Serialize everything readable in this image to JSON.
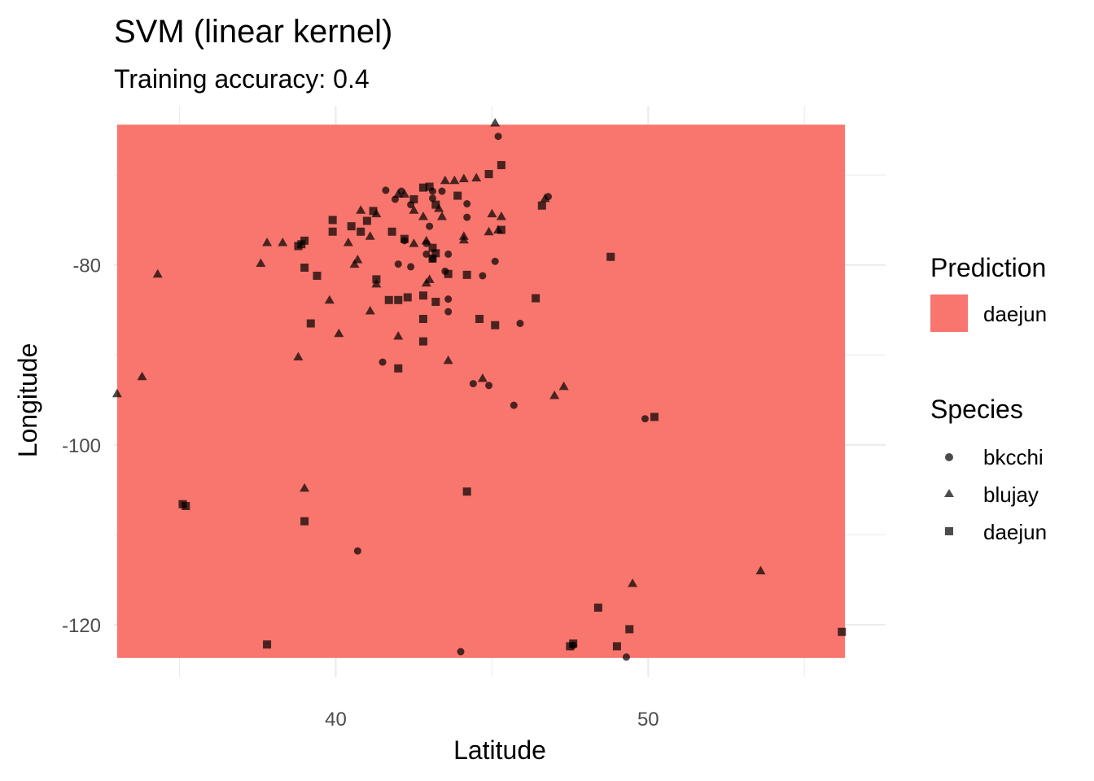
{
  "chart_data": {
    "type": "scatter",
    "title": "SVM (linear kernel)",
    "subtitle": "Training accuracy: 0.4",
    "xlabel": "Latitude",
    "ylabel": "Longitude",
    "xlim": [
      32.9,
      57.6
    ],
    "ylim": [
      -125.8,
      -62.3
    ],
    "x_ticks": [
      40,
      50
    ],
    "y_ticks": [
      -80,
      -100,
      -120
    ],
    "x_minor": [
      35,
      45,
      55
    ],
    "y_minor": [
      -70,
      -90,
      -110
    ],
    "grid": true,
    "prediction_region": {
      "label": "daejun",
      "color": "#F8766D",
      "x_range": [
        33.0,
        56.3
      ],
      "y_range": [
        -123.7,
        -64.4
      ]
    },
    "legends": {
      "prediction": {
        "title": "Prediction",
        "items": [
          {
            "label": "daejun",
            "color": "#F8766D"
          }
        ]
      },
      "species": {
        "title": "Species",
        "items": [
          {
            "label": "bkcchi",
            "shape": "circle"
          },
          {
            "label": "blujay",
            "shape": "triangle"
          },
          {
            "label": "daejun",
            "shape": "square"
          }
        ]
      }
    },
    "series": [
      {
        "name": "bkcchi",
        "shape": "circle",
        "points": [
          [
            45.2,
            -65.7
          ],
          [
            41.6,
            -71.7
          ],
          [
            43.4,
            -71.8
          ],
          [
            46.8,
            -72.4
          ],
          [
            43.1,
            -71.8
          ],
          [
            43.1,
            -72.6
          ],
          [
            41.9,
            -72.7
          ],
          [
            42.1,
            -71.8
          ],
          [
            44.2,
            -73.2
          ],
          [
            42.4,
            -73.3
          ],
          [
            44.2,
            -74.7
          ],
          [
            43.0,
            -75.7
          ],
          [
            42.2,
            -77.3
          ],
          [
            42.9,
            -77.6
          ],
          [
            42.9,
            -78.8
          ],
          [
            43.1,
            -79.3
          ],
          [
            43.6,
            -78.8
          ],
          [
            45.1,
            -79.6
          ],
          [
            42.0,
            -79.9
          ],
          [
            43.5,
            -80.7
          ],
          [
            44.7,
            -81.2
          ],
          [
            42.4,
            -80.2
          ],
          [
            43.6,
            -83.8
          ],
          [
            43.6,
            -85.2
          ],
          [
            45.9,
            -86.5
          ],
          [
            41.5,
            -90.8
          ],
          [
            44.4,
            -93.2
          ],
          [
            44.9,
            -93.4
          ],
          [
            45.7,
            -95.6
          ],
          [
            49.9,
            -97.1
          ],
          [
            40.7,
            -111.8
          ],
          [
            44.0,
            -123.0
          ],
          [
            47.6,
            -122.3
          ],
          [
            49.3,
            -123.6
          ]
        ]
      },
      {
        "name": "blujay",
        "shape": "triangle",
        "points": [
          [
            45.1,
            -64.2
          ],
          [
            44.1,
            -70.4
          ],
          [
            44.5,
            -70.3
          ],
          [
            43.8,
            -70.6
          ],
          [
            43.5,
            -70.6
          ],
          [
            46.7,
            -72.6
          ],
          [
            42.0,
            -72.1
          ],
          [
            42.2,
            -72.1
          ],
          [
            40.8,
            -73.9
          ],
          [
            41.3,
            -74.3
          ],
          [
            42.5,
            -73.9
          ],
          [
            43.3,
            -73.7
          ],
          [
            42.8,
            -74.6
          ],
          [
            43.4,
            -74.6
          ],
          [
            45.0,
            -74.3
          ],
          [
            45.3,
            -74.6
          ],
          [
            44.9,
            -76.3
          ],
          [
            45.2,
            -76.1
          ],
          [
            44.1,
            -77.2
          ],
          [
            41.1,
            -76.8
          ],
          [
            42.9,
            -77.3
          ],
          [
            44.1,
            -76.8
          ],
          [
            42.5,
            -77.6
          ],
          [
            37.8,
            -77.5
          ],
          [
            38.3,
            -77.5
          ],
          [
            40.4,
            -77.5
          ],
          [
            37.6,
            -79.8
          ],
          [
            40.7,
            -79.4
          ],
          [
            40.6,
            -79.9
          ],
          [
            43.0,
            -81.6
          ],
          [
            42.9,
            -82.0
          ],
          [
            34.3,
            -81.0
          ],
          [
            41.3,
            -82.1
          ],
          [
            39.8,
            -83.9
          ],
          [
            41.1,
            -85.1
          ],
          [
            40.1,
            -87.6
          ],
          [
            42.0,
            -87.9
          ],
          [
            38.8,
            -90.2
          ],
          [
            43.6,
            -90.6
          ],
          [
            44.7,
            -92.6
          ],
          [
            47.3,
            -93.5
          ],
          [
            47.0,
            -94.5
          ],
          [
            33.8,
            -92.4
          ],
          [
            33.0,
            -94.3
          ],
          [
            39.0,
            -104.8
          ],
          [
            49.5,
            -115.4
          ],
          [
            53.6,
            -114.0
          ]
        ]
      },
      {
        "name": "daejun",
        "shape": "square",
        "points": [
          [
            45.3,
            -68.9
          ],
          [
            44.9,
            -69.9
          ],
          [
            43.0,
            -71.3
          ],
          [
            43.9,
            -72.3
          ],
          [
            42.8,
            -71.4
          ],
          [
            42.5,
            -72.7
          ],
          [
            43.2,
            -73.3
          ],
          [
            46.6,
            -73.4
          ],
          [
            41.2,
            -74.0
          ],
          [
            41.0,
            -75.1
          ],
          [
            40.5,
            -75.7
          ],
          [
            39.9,
            -75.0
          ],
          [
            39.9,
            -76.3
          ],
          [
            40.8,
            -76.3
          ],
          [
            41.8,
            -76.3
          ],
          [
            45.3,
            -76.1
          ],
          [
            42.2,
            -77.1
          ],
          [
            39.0,
            -77.3
          ],
          [
            38.9,
            -77.7
          ],
          [
            38.8,
            -77.9
          ],
          [
            43.1,
            -78.1
          ],
          [
            43.2,
            -78.7
          ],
          [
            43.1,
            -79.3
          ],
          [
            48.8,
            -79.1
          ],
          [
            39.0,
            -80.3
          ],
          [
            44.2,
            -81.1
          ],
          [
            43.6,
            -81.0
          ],
          [
            39.4,
            -81.2
          ],
          [
            41.3,
            -81.6
          ],
          [
            41.7,
            -83.9
          ],
          [
            42.0,
            -83.9
          ],
          [
            42.3,
            -83.6
          ],
          [
            42.8,
            -83.4
          ],
          [
            43.2,
            -84.1
          ],
          [
            46.4,
            -83.7
          ],
          [
            42.8,
            -86.0
          ],
          [
            44.6,
            -86.0
          ],
          [
            45.1,
            -86.7
          ],
          [
            39.2,
            -86.5
          ],
          [
            42.8,
            -88.5
          ],
          [
            42.0,
            -91.5
          ],
          [
            50.2,
            -96.9
          ],
          [
            44.2,
            -105.2
          ],
          [
            35.1,
            -106.6
          ],
          [
            35.2,
            -106.8
          ],
          [
            39.0,
            -108.5
          ],
          [
            37.8,
            -122.2
          ],
          [
            48.4,
            -118.1
          ],
          [
            49.4,
            -120.5
          ],
          [
            47.6,
            -122.1
          ],
          [
            47.5,
            -122.4
          ],
          [
            49.0,
            -122.4
          ],
          [
            56.2,
            -120.8
          ]
        ]
      }
    ]
  }
}
